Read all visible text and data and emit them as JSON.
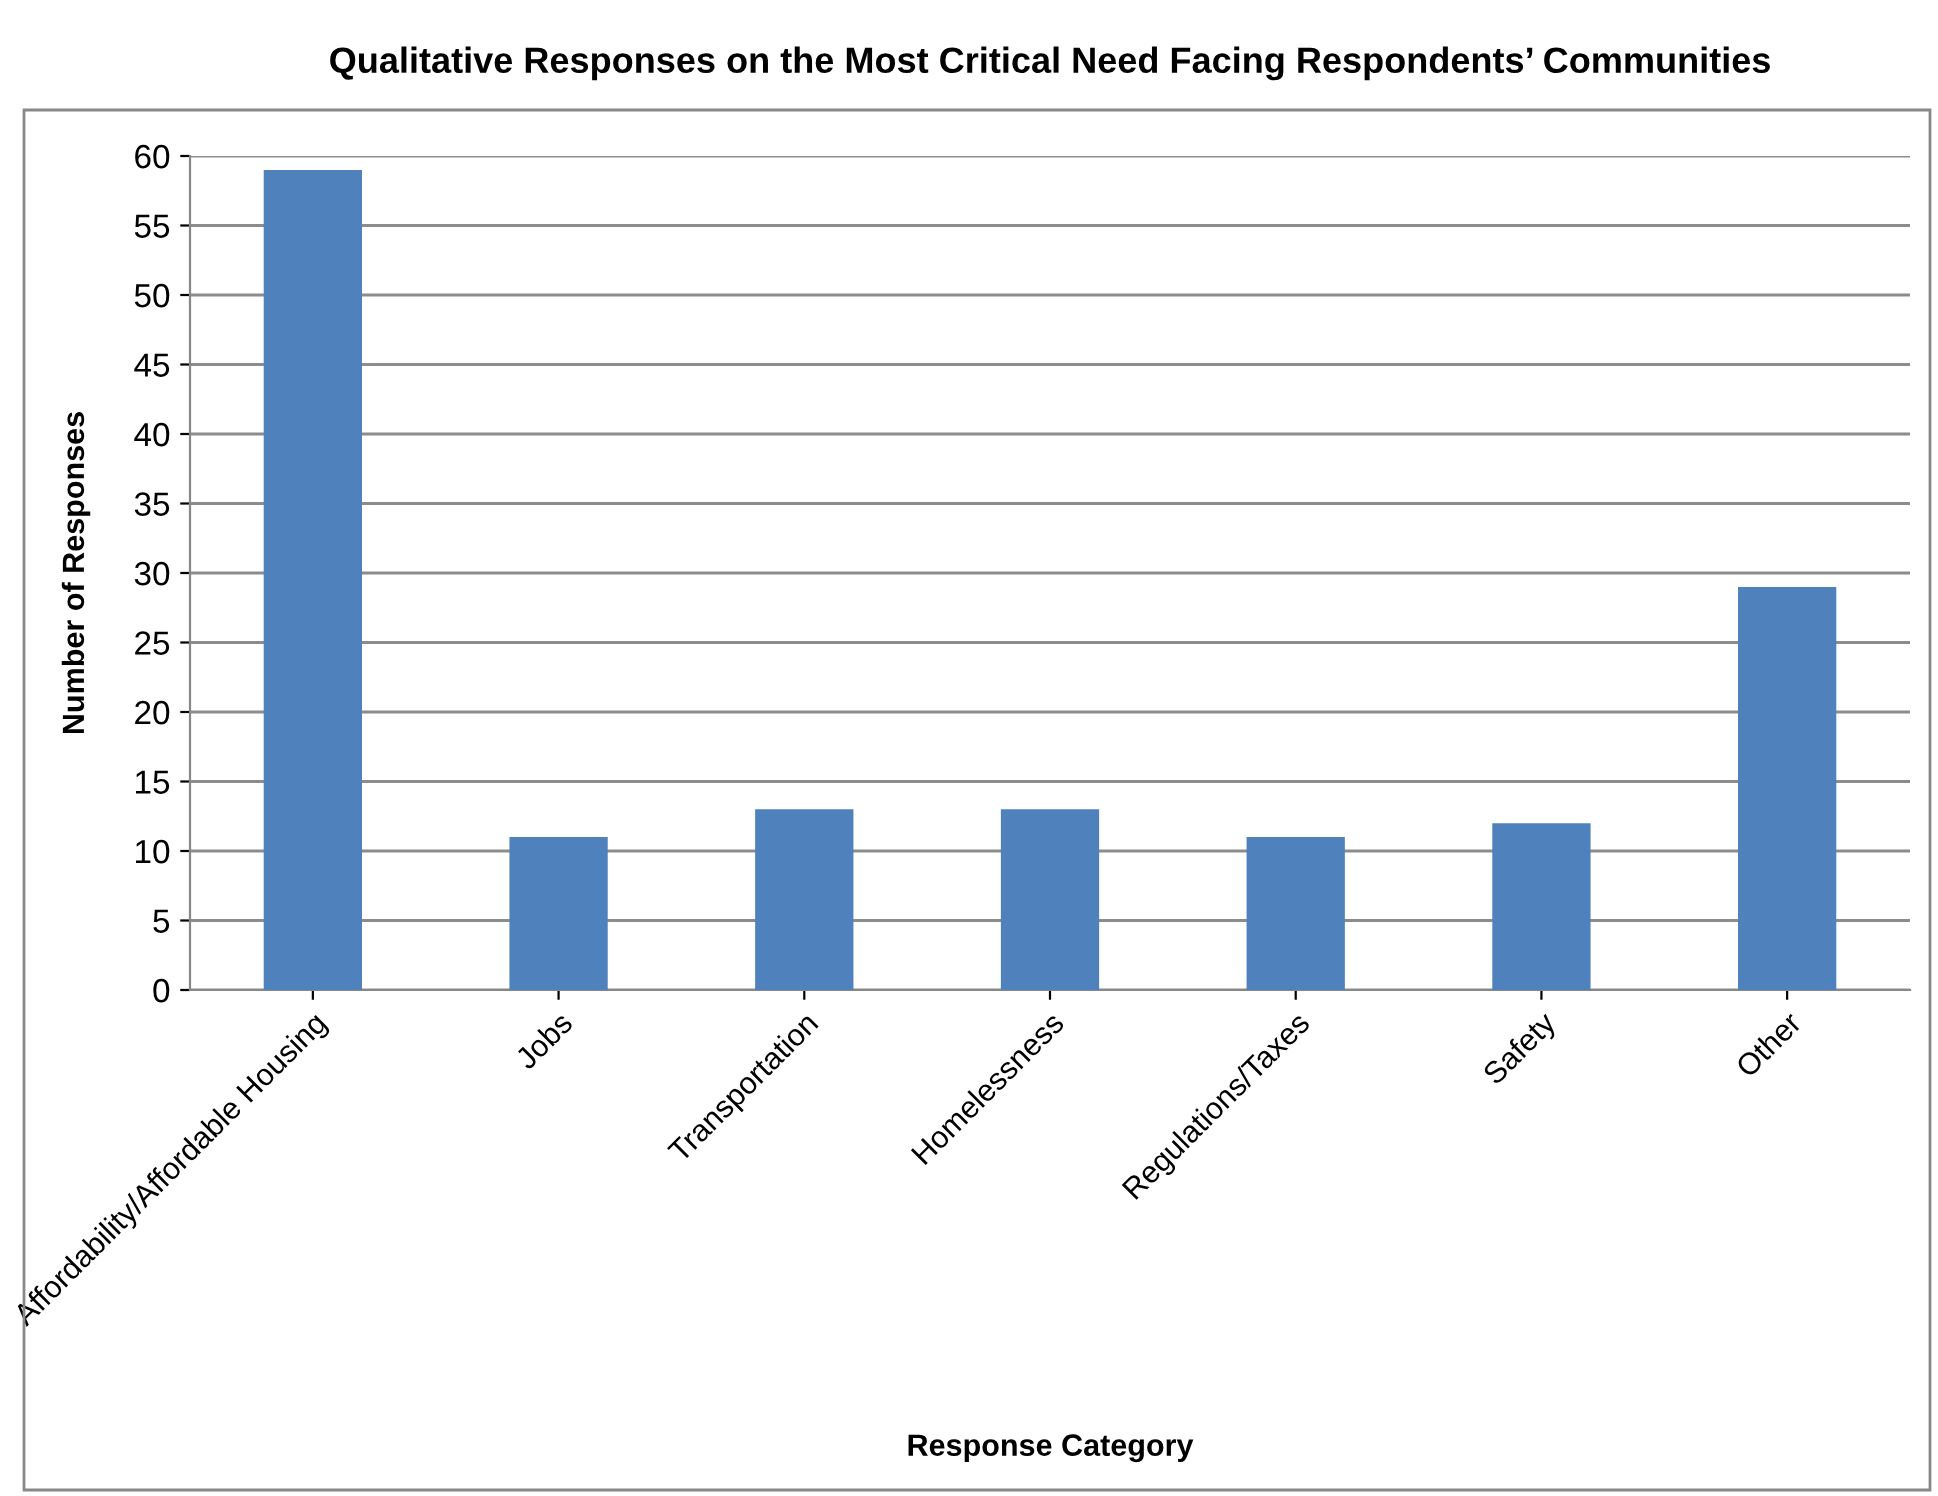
{
  "chart_data": {
    "type": "bar",
    "title": "Qualitative Responses on the Most Critical Need Facing Respondents’ Communities",
    "xlabel": "Response Category",
    "ylabel": "Number of Responses",
    "categories": [
      "Affordability/Affordable Housing",
      "Jobs",
      "Transportation",
      "Homelessness",
      "Regulations/Taxes",
      "Safety",
      "Other"
    ],
    "values": [
      59,
      11,
      13,
      13,
      11,
      12,
      29
    ],
    "color": "#4f81bd",
    "ylim": [
      0,
      60
    ],
    "yticks": [
      0,
      5,
      10,
      15,
      20,
      25,
      30,
      35,
      40,
      45,
      50,
      55,
      60
    ],
    "grid": "y",
    "legend": false
  }
}
